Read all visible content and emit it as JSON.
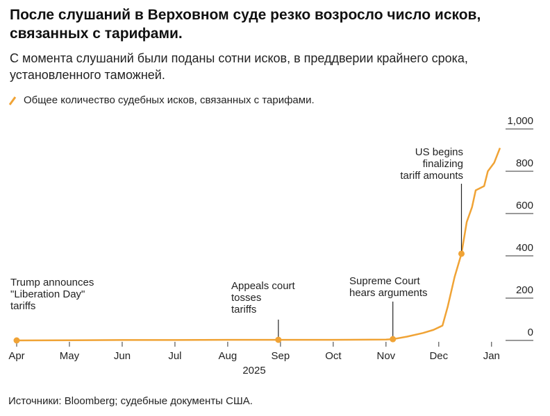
{
  "chart_data": {
    "type": "line",
    "title": "После слушаний в Верховном суде резко возросло число исков, связанных с тарифами.",
    "subtitle": "С момента слушаний были поданы сотни исков, в преддверии крайнего срока, установленного таможней.",
    "source": "Источники: Bloomberg; судебные документы США.",
    "x_label": "2025",
    "x": [
      0,
      1,
      2,
      3,
      4,
      5,
      6,
      7,
      7.13,
      7.4,
      7.7,
      7.9,
      8.07,
      8.17,
      8.3,
      8.43,
      8.53,
      8.63,
      8.7,
      8.86,
      8.93,
      9.05,
      9.16
    ],
    "series": [
      {
        "name": "Общее количество судебных исков, связанных с тарифами.",
        "color": "#f0a335",
        "values": [
          0,
          1,
          2,
          2,
          3,
          3,
          3,
          4,
          6,
          18,
          35,
          50,
          70,
          160,
          300,
          410,
          560,
          630,
          710,
          730,
          800,
          840,
          910
        ]
      }
    ],
    "xlim": [
      0,
      9.2
    ],
    "xticks": [
      {
        "value": 0,
        "label": "Apr"
      },
      {
        "value": 1,
        "label": "May"
      },
      {
        "value": 2,
        "label": "Jun"
      },
      {
        "value": 3,
        "label": "Jul"
      },
      {
        "value": 4,
        "label": "Aug"
      },
      {
        "value": 5,
        "label": "Sep"
      },
      {
        "value": 6,
        "label": "Oct"
      },
      {
        "value": 7,
        "label": "Nov"
      },
      {
        "value": 8,
        "label": "Dec"
      },
      {
        "value": 9,
        "label": "Jan"
      }
    ],
    "ylim": [
      0,
      1000
    ],
    "yticks": [
      0,
      200,
      400,
      600,
      800,
      {
        "value": 1000,
        "label": "1,000"
      }
    ],
    "annotations": [
      {
        "lines": [
          "Trump announces",
          "\"Liberation Day\"",
          "tariffs"
        ],
        "x": 0,
        "y": 0
      },
      {
        "lines": [
          "Appeals court",
          "tosses",
          "tariffs"
        ],
        "x": 4.96,
        "y": 3
      },
      {
        "lines": [
          "Supreme Court",
          "hears arguments"
        ],
        "x": 7.13,
        "y": 6
      },
      {
        "lines": [
          "US begins",
          "finalizing",
          "tariff amounts"
        ],
        "x": 8.43,
        "y": 410
      }
    ]
  }
}
